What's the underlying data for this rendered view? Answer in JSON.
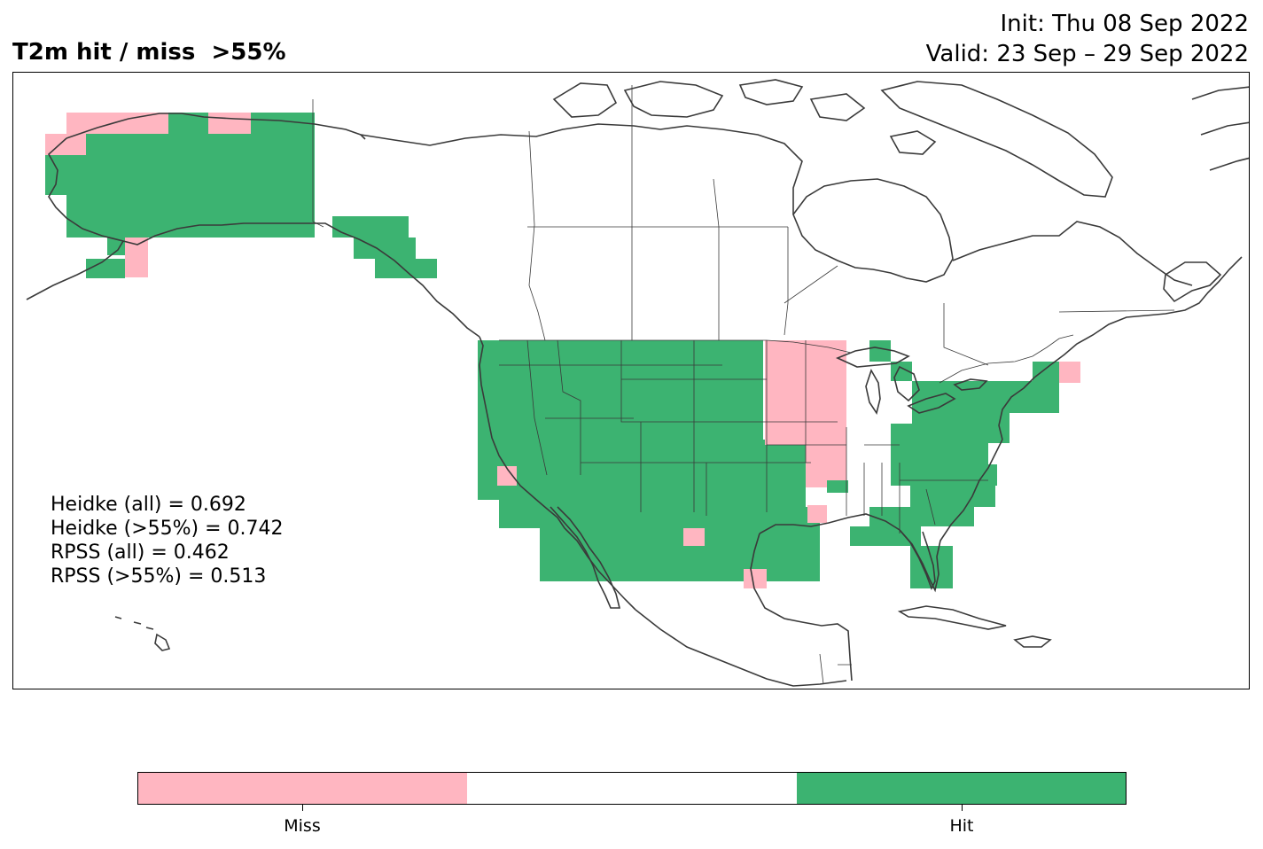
{
  "title": "T2m hit / miss  >55%",
  "init_line": "Init: Thu 08 Sep 2022",
  "valid_line": "Valid: 23 Sep – 29 Sep 2022",
  "stats": [
    "Heidke (all) = 0.692",
    "Heidke (>55%) = 0.742",
    "RPSS (all) = 0.462",
    "RPSS (>55%) = 0.513"
  ],
  "colors": {
    "miss": "#ffb6c1",
    "neutral": "#ffffff",
    "hit": "#3cb371",
    "coast": "#3a3a3a"
  },
  "colorbar": {
    "segments": [
      "miss",
      "neutral",
      "hit"
    ],
    "tick_labels": [
      "Miss",
      "Hit"
    ]
  }
}
